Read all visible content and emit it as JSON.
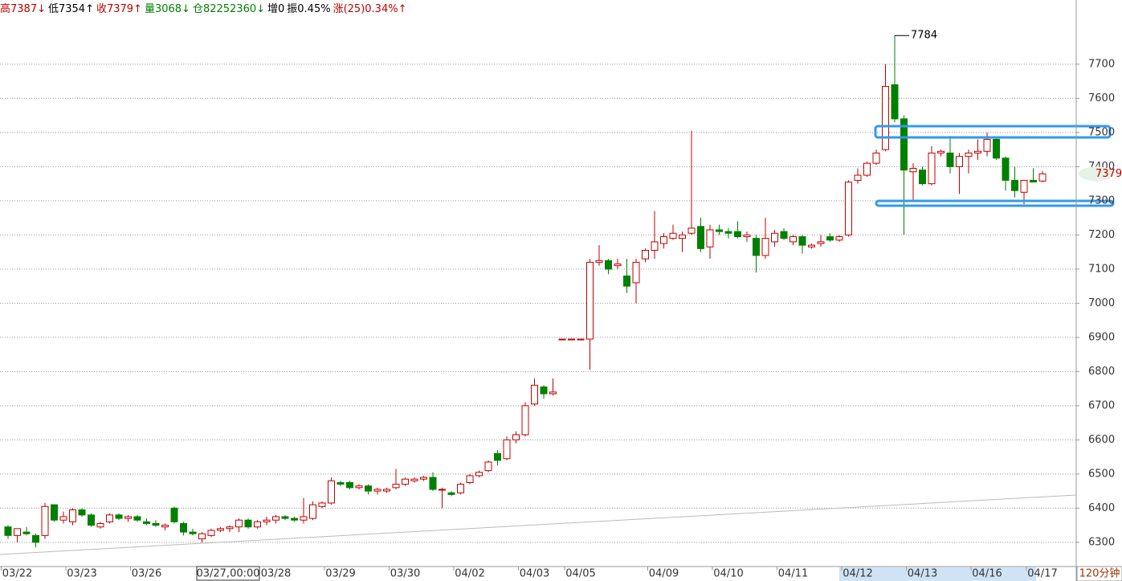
{
  "chart_data": {
    "type": "candlestick",
    "header": [
      {
        "text": "高7387↓",
        "color": "#c00000"
      },
      {
        "text": "低7354↑",
        "color": "#000000"
      },
      {
        "text": "收7379↑",
        "color": "#c00000"
      },
      {
        "text": "量3068↓",
        "color": "#008000"
      },
      {
        "text": "仓82252360↓",
        "color": "#008000"
      },
      {
        "text": "增0",
        "color": "#000000"
      },
      {
        "text": "振0.45%",
        "color": "#000000"
      },
      {
        "text": "涨(25)0.34%↑",
        "color": "#c00000"
      }
    ],
    "categories": [
      null,
      "03/22",
      null,
      null,
      null,
      null,
      null,
      null,
      "03/23",
      null,
      null,
      null,
      null,
      null,
      null,
      "03/26",
      null,
      null,
      null,
      null,
      null,
      null,
      null,
      null,
      null,
      null,
      null,
      null,
      null,
      "03/28",
      null,
      null,
      null,
      null,
      null,
      null,
      "03/29",
      null,
      null,
      null,
      null,
      null,
      null,
      "03/30",
      null,
      null,
      null,
      null,
      null,
      null,
      "04/02",
      null,
      null,
      null,
      null,
      null,
      null,
      "04/03",
      null,
      null,
      null,
      null,
      "04/05",
      null,
      null,
      null,
      null,
      null,
      null,
      null,
      null,
      "04/09",
      null,
      null,
      null,
      null,
      null,
      null,
      "04/10",
      null,
      null,
      null,
      null,
      null,
      null,
      "04/11",
      null,
      null,
      null,
      null,
      null,
      null,
      "04/12",
      null,
      null,
      null,
      null,
      null,
      null,
      "04/13",
      null,
      null,
      null,
      null,
      null,
      null,
      "04/16",
      null,
      null,
      null,
      null,
      null,
      "04/17"
    ],
    "open": [
      6345,
      6320,
      6330,
      6320,
      6320,
      6410,
      6365,
      6360,
      6395,
      6380,
      6345,
      6360,
      6380,
      6370,
      6375,
      6360,
      6355,
      6345,
      6400,
      6355,
      6330,
      6310,
      6320,
      6335,
      6340,
      6345,
      6365,
      6345,
      6360,
      6365,
      6375,
      6370,
      6365,
      6370,
      6405,
      6415,
      6475,
      6475,
      6460,
      6465,
      6450,
      6450,
      6460,
      6470,
      6480,
      6485,
      6490,
      6455,
      6445,
      6445,
      6475,
      6495,
      6510,
      6560,
      6545,
      6600,
      6615,
      6705,
      6755,
      6735,
      6895,
      6895,
      6895,
      6895,
      7120,
      7125,
      7110,
      7080,
      7060,
      7130,
      7155,
      7175,
      7190,
      7190,
      7205,
      7225,
      7165,
      7215,
      7210,
      7210,
      7195,
      7190,
      7140,
      7180,
      7210,
      7180,
      7195,
      7165,
      7175,
      7195,
      7185,
      7200,
      7360,
      7375,
      7410,
      7450,
      7640,
      7540,
      7385,
      7390,
      7350,
      7440,
      7440,
      7400,
      7430,
      7440,
      7445,
      7480,
      7425,
      7360,
      7325,
      7360,
      7358
    ],
    "high": [
      6350,
      6340,
      6345,
      6325,
      6415,
      6410,
      6390,
      6400,
      6400,
      6385,
      6360,
      6385,
      6385,
      6380,
      6380,
      6370,
      6365,
      6355,
      6405,
      6360,
      6340,
      6330,
      6340,
      6345,
      6350,
      6370,
      6370,
      6365,
      6375,
      6380,
      6380,
      6375,
      6430,
      6420,
      6420,
      6490,
      6480,
      6480,
      6470,
      6470,
      6460,
      6460,
      6515,
      6490,
      6490,
      6495,
      6505,
      6460,
      6450,
      6475,
      6500,
      6510,
      6540,
      6570,
      6610,
      6625,
      6710,
      6780,
      6760,
      6780,
      6895,
      6895,
      6895,
      7130,
      7170,
      7130,
      7130,
      7130,
      7130,
      7160,
      7270,
      7205,
      7230,
      7210,
      7505,
      7250,
      7230,
      7230,
      7220,
      7240,
      7210,
      7200,
      7250,
      7215,
      7220,
      7200,
      7200,
      7175,
      7200,
      7205,
      7200,
      7360,
      7395,
      7415,
      7450,
      7700,
      7784,
      7550,
      7410,
      7400,
      7460,
      7450,
      7490,
      7440,
      7450,
      7480,
      7500,
      7485,
      7430,
      7400,
      7360,
      7395,
      7387
    ],
    "low": [
      6310,
      6300,
      6320,
      6285,
      6310,
      6360,
      6355,
      6350,
      6375,
      6345,
      6340,
      6355,
      6365,
      6360,
      6360,
      6350,
      6345,
      6335,
      6355,
      6320,
      6320,
      6300,
      6315,
      6330,
      6330,
      6330,
      6340,
      6340,
      6350,
      6355,
      6365,
      6360,
      6355,
      6365,
      6400,
      6410,
      6465,
      6455,
      6455,
      6440,
      6440,
      6445,
      6455,
      6465,
      6475,
      6480,
      6450,
      6400,
      6435,
      6440,
      6470,
      6490,
      6505,
      6525,
      6540,
      6590,
      6610,
      6700,
      6720,
      6730,
      6895,
      6895,
      6895,
      6805,
      7110,
      7085,
      7100,
      7030,
      7000,
      7120,
      7130,
      7160,
      7185,
      7150,
      7200,
      7150,
      7130,
      7200,
      7190,
      7190,
      7180,
      7090,
      7130,
      7165,
      7185,
      7170,
      7145,
      7160,
      7165,
      7180,
      7180,
      7195,
      7350,
      7370,
      7405,
      7445,
      7530,
      7200,
      7300,
      7345,
      7345,
      7430,
      7380,
      7320,
      7380,
      7420,
      7430,
      7420,
      7330,
      7310,
      7290,
      7355,
      7354
    ],
    "close": [
      6320,
      6340,
      6325,
      6300,
      6405,
      6365,
      6375,
      6395,
      6380,
      6350,
      6355,
      6380,
      6370,
      6375,
      6365,
      6355,
      6350,
      6350,
      6360,
      6330,
      6325,
      6325,
      6335,
      6340,
      6345,
      6365,
      6345,
      6360,
      6365,
      6375,
      6370,
      6365,
      6375,
      6410,
      6415,
      6480,
      6470,
      6460,
      6465,
      6450,
      6455,
      6455,
      6470,
      6485,
      6485,
      6490,
      6455,
      6455,
      6440,
      6470,
      6495,
      6505,
      6535,
      6540,
      6600,
      6615,
      6700,
      6760,
      6735,
      6740,
      6895,
      6895,
      6895,
      7120,
      7125,
      7100,
      7115,
      7050,
      7120,
      7155,
      7180,
      7195,
      7205,
      7200,
      7220,
      7160,
      7215,
      7210,
      7205,
      7195,
      7200,
      7140,
      7190,
      7205,
      7190,
      7195,
      7170,
      7170,
      7180,
      7185,
      7195,
      7355,
      7375,
      7410,
      7440,
      7635,
      7540,
      7390,
      7395,
      7350,
      7440,
      7445,
      7400,
      7430,
      7440,
      7445,
      7480,
      7425,
      7360,
      7330,
      7360,
      7355,
      7379
    ],
    "colors": {
      "up": "#c00000",
      "down": "#008000"
    },
    "ylim": [
      6229,
      7841
    ],
    "yticks": [
      6300,
      6400,
      6500,
      6600,
      6700,
      6800,
      6900,
      7000,
      7100,
      7200,
      7300,
      7400,
      7500,
      7600,
      7700
    ],
    "grid": true,
    "peak_annotation": {
      "value": 7784
    },
    "last_price": {
      "value": 7379
    },
    "crosshair": "03/27,00:00",
    "period": "120分钟"
  }
}
